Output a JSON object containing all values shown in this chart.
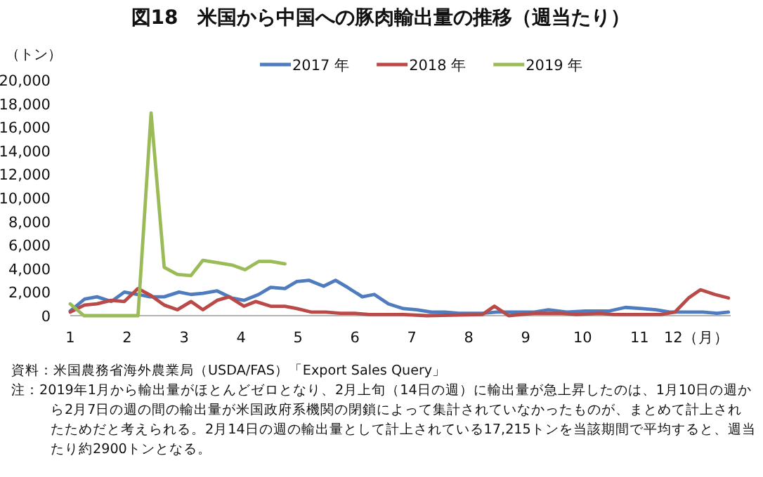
{
  "chart_data": {
    "type": "line",
    "title": "図18　米国から中国への豚肉輸出量の推移（週当たり）",
    "ylabel": "（トン）",
    "xlim": [
      1,
      12.6
    ],
    "xticks": [
      1,
      2,
      3,
      4,
      5,
      6,
      7,
      8,
      9,
      10,
      11,
      {
        "value": 12,
        "label": "12（月）"
      }
    ],
    "ylim": [
      0,
      20000
    ],
    "yticks": [
      0,
      {
        "value": 2000,
        "label": "2,000"
      },
      {
        "value": 4000,
        "label": "4,000"
      },
      {
        "value": 6000,
        "label": "6,000"
      },
      {
        "value": 8000,
        "label": "8,000"
      },
      {
        "value": 10000,
        "label": "10,000"
      },
      {
        "value": 12000,
        "label": "12,000"
      },
      {
        "value": 14000,
        "label": "14,000"
      },
      {
        "value": 16000,
        "label": "16,000"
      },
      {
        "value": 18000,
        "label": "18,000"
      },
      {
        "value": 20000,
        "label": "20,000"
      }
    ],
    "legend": "top",
    "marker": "none",
    "line_style": "solid",
    "series": [
      {
        "name": "2017 年",
        "color": "#4f7bbf",
        "x": [
          1,
          1.25,
          1.47,
          1.72,
          1.95,
          2.19,
          2.4,
          2.65,
          2.91,
          3.12,
          3.33,
          3.58,
          3.84,
          4.05,
          4.31,
          4.52,
          4.77,
          4.98,
          5.19,
          5.45,
          5.66,
          5.87,
          6.13,
          6.34,
          6.59,
          6.85,
          7.09,
          7.34,
          7.58,
          7.83,
          8.24,
          8.49,
          8.82,
          9.15,
          9.4,
          9.72,
          10.05,
          10.47,
          10.75,
          11.04,
          11.29,
          11.53,
          11.86,
          12.11,
          12.36,
          12.56
        ],
        "values": [
          400,
          1400,
          1600,
          1200,
          2000,
          1800,
          1600,
          1600,
          2000,
          1800,
          1900,
          2100,
          1500,
          1300,
          1800,
          2400,
          2300,
          2900,
          3000,
          2500,
          3000,
          2400,
          1600,
          1800,
          1000,
          600,
          500,
          300,
          300,
          200,
          200,
          300,
          300,
          300,
          500,
          300,
          400,
          400,
          700,
          600,
          500,
          300,
          300,
          300,
          200,
          300
        ]
      },
      {
        "name": "2018 年",
        "color": "#b94a48",
        "x": [
          1,
          1.25,
          1.47,
          1.72,
          1.95,
          2.19,
          2.42,
          2.65,
          2.88,
          3.12,
          3.33,
          3.58,
          3.79,
          4.05,
          4.26,
          4.52,
          4.77,
          4.98,
          5.24,
          5.49,
          5.74,
          6,
          6.25,
          6.85,
          7.26,
          8.24,
          8.45,
          8.7,
          9.15,
          9.64,
          9.89,
          10.3,
          10.55,
          11.04,
          11.37,
          11.62,
          11.86,
          12.07,
          12.32,
          12.56
        ],
        "values": [
          300,
          900,
          1000,
          1300,
          1200,
          2300,
          1700,
          900,
          500,
          1200,
          500,
          1300,
          1600,
          800,
          1200,
          800,
          800,
          600,
          300,
          300,
          200,
          200,
          100,
          100,
          0,
          100,
          800,
          0,
          200,
          200,
          100,
          200,
          100,
          100,
          100,
          300,
          1500,
          2200,
          1800,
          1500
        ]
      },
      {
        "name": "2019 年",
        "color": "#9bbb59",
        "x": [
          1,
          1.24,
          2.19,
          2.42,
          2.65,
          2.88,
          3.12,
          3.33,
          3.58,
          3.84,
          4.07,
          4.31,
          4.52,
          4.77
        ],
        "values": [
          1000,
          0,
          0,
          17200,
          4100,
          3500,
          3400,
          4700,
          4500,
          4300,
          3900,
          4600,
          4600,
          4400
        ]
      }
    ],
    "annotations": [
      "資料：米国農務省海外農業局（USDA/FAS）「Export Sales Query」",
      "注：2019年1月から輸出量がほとんどゼロとなり、2月上旬（14日の週）に輸出量が急上昇したのは、1月10日の週から2月7日の週の間の輸出量が米国政府系機関の閉鎖によって集計されていなかったものが、まとめて計上されたためだと考えられる。2月14日の週の輸出量として計上されている17,215トンを当該期間で平均すると、週当たり約2900トンとなる。"
    ]
  }
}
